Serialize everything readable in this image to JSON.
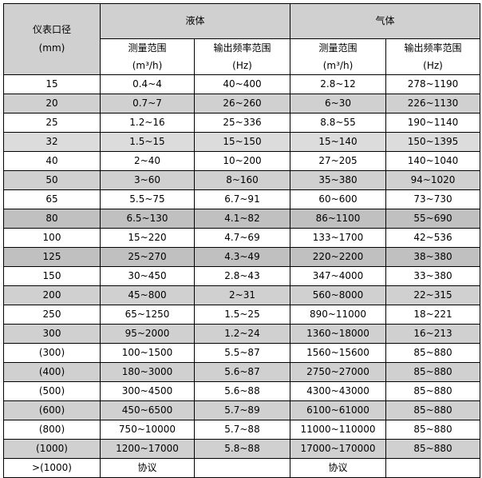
{
  "header": {
    "diameter": "仪表口径",
    "diameter_unit": "(mm)",
    "liquid": "液体",
    "gas": "气体",
    "range": "测量范围",
    "range_unit": "(m³/h)",
    "freq": "输出频率范围",
    "freq_unit": "(Hz)"
  },
  "colors": {
    "gray": "#d0d0d0",
    "light": "#dcdcdc",
    "dark": "#c0c0c0",
    "white": "#ffffff"
  },
  "rows": [
    {
      "shade": "white",
      "d": "15",
      "lr": "0.4~4",
      "lf": "40~400",
      "gr": "2.8~12",
      "gf": "278~1190"
    },
    {
      "shade": "gray",
      "d": "20",
      "lr": "0.7~7",
      "lf": "26~260",
      "gr": "6~30",
      "gf": "226~1130"
    },
    {
      "shade": "white",
      "d": "25",
      "lr": "1.2~16",
      "lf": "25~336",
      "gr": "8.8~55",
      "gf": "190~1140"
    },
    {
      "shade": "light",
      "d": "32",
      "lr": "1.5~15",
      "lf": "15~150",
      "gr": "15~140",
      "gf": "150~1395"
    },
    {
      "shade": "white",
      "d": "40",
      "lr": "2~40",
      "lf": "10~200",
      "gr": "27~205",
      "gf": "140~1040"
    },
    {
      "shade": "gray",
      "d": "50",
      "lr": "3~60",
      "lf": "8~160",
      "gr": "35~380",
      "gf": "94~1020"
    },
    {
      "shade": "white",
      "d": "65",
      "lr": "5.5~75",
      "lf": "6.7~91",
      "gr": "60~600",
      "gf": "73~730"
    },
    {
      "shade": "dark",
      "d": "80",
      "lr": "6.5~130",
      "lf": "4.1~82",
      "gr": "86~1100",
      "gf": "55~690"
    },
    {
      "shade": "white",
      "d": "100",
      "lr": "15~220",
      "lf": "4.7~69",
      "gr": "133~1700",
      "gf": "42~536"
    },
    {
      "shade": "dark",
      "d": "125",
      "lr": "25~270",
      "lf": "4.3~49",
      "gr": "220~2200",
      "gf": "38~380"
    },
    {
      "shade": "white",
      "d": "150",
      "lr": "30~450",
      "lf": "2.8~43",
      "gr": "347~4000",
      "gf": "33~380"
    },
    {
      "shade": "gray",
      "d": "200",
      "lr": "45~800",
      "lf": "2~31",
      "gr": "560~8000",
      "gf": "22~315"
    },
    {
      "shade": "white",
      "d": "250",
      "lr": "65~1250",
      "lf": "1.5~25",
      "gr": "890~11000",
      "gf": "18~221"
    },
    {
      "shade": "gray",
      "d": "300",
      "lr": "95~2000",
      "lf": "1.2~24",
      "gr": "1360~18000",
      "gf": "16~213"
    },
    {
      "shade": "white",
      "d": "(300)",
      "lr": "100~1500",
      "lf": "5.5~87",
      "gr": "1560~15600",
      "gf": "85~880"
    },
    {
      "shade": "gray",
      "d": "(400)",
      "lr": "180~3000",
      "lf": "5.6~87",
      "gr": "2750~27000",
      "gf": "85~880"
    },
    {
      "shade": "white",
      "d": "(500)",
      "lr": "300~4500",
      "lf": "5.6~88",
      "gr": "4300~43000",
      "gf": "85~880"
    },
    {
      "shade": "gray",
      "d": "(600)",
      "lr": "450~6500",
      "lf": "5.7~89",
      "gr": "6100~61000",
      "gf": "85~880"
    },
    {
      "shade": "white",
      "d": "(800)",
      "lr": "750~10000",
      "lf": "5.7~88",
      "gr": "11000~110000",
      "gf": "85~880"
    },
    {
      "shade": "gray",
      "d": "(1000)",
      "lr": "1200~17000",
      "lf": "5.8~88",
      "gr": "17000~170000",
      "gf": "85~880"
    },
    {
      "shade": "white",
      "d": ">(1000)",
      "lr": "协议",
      "lf": "",
      "gr": "协议",
      "gf": ""
    }
  ]
}
